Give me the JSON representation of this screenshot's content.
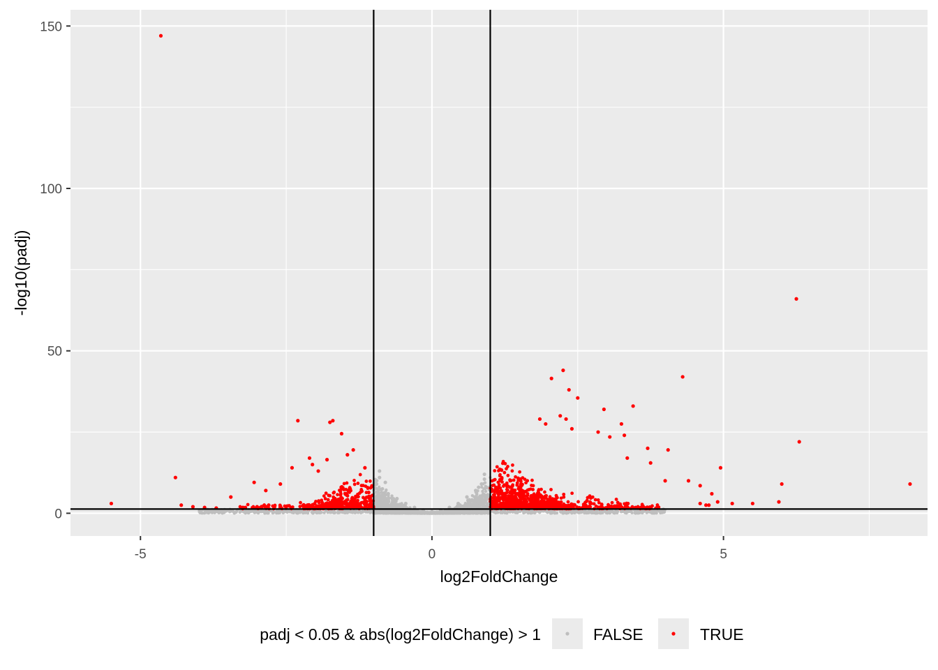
{
  "chart_data": {
    "type": "scatter",
    "title": "",
    "xlabel": "log2FoldChange",
    "ylabel": "-log10(padj)",
    "xlim": [
      -6.2,
      8.5
    ],
    "ylim": [
      -7,
      155
    ],
    "x_ticks": [
      -5,
      0,
      5
    ],
    "y_ticks": [
      0,
      50,
      100,
      150
    ],
    "x_tick_labels": [
      "-5",
      "0",
      "5"
    ],
    "y_tick_labels": [
      "0",
      "50",
      "100",
      "150"
    ],
    "grid": true,
    "reference_lines": {
      "vertical": [
        -1,
        1
      ],
      "horizontal": [
        1.3
      ]
    },
    "legend": {
      "title": "padj < 0.05 & abs(log2FoldChange) > 1",
      "position": "bottom",
      "entries": [
        {
          "label": "FALSE",
          "color": "#bebebe"
        },
        {
          "label": "TRUE",
          "color": "#ff0000"
        }
      ]
    },
    "colors": {
      "panel": "#ebebeb",
      "grid": "#ffffff",
      "false": "#bebebe",
      "true": "#ff0000",
      "ref_line": "#000000"
    },
    "series": [
      {
        "name": "TRUE",
        "color": "#ff0000",
        "points": [
          [
            -4.65,
            147
          ],
          [
            6.25,
            66
          ],
          [
            6.3,
            22
          ],
          [
            4.3,
            42
          ],
          [
            2.25,
            44
          ],
          [
            2.05,
            41.5
          ],
          [
            2.35,
            38
          ],
          [
            2.5,
            35.5
          ],
          [
            2.95,
            32
          ],
          [
            3.45,
            33
          ],
          [
            2.2,
            30
          ],
          [
            2.3,
            29
          ],
          [
            1.85,
            29
          ],
          [
            1.95,
            27.5
          ],
          [
            2.4,
            26
          ],
          [
            3.25,
            27.5
          ],
          [
            2.85,
            25
          ],
          [
            3.05,
            23.5
          ],
          [
            3.3,
            24
          ],
          [
            3.7,
            20
          ],
          [
            4.05,
            19.5
          ],
          [
            3.35,
            17
          ],
          [
            3.75,
            15.5
          ],
          [
            8.2,
            9
          ],
          [
            6.0,
            9
          ],
          [
            4.95,
            14
          ],
          [
            4.6,
            8.5
          ],
          [
            4.4,
            10
          ],
          [
            4.0,
            10
          ],
          [
            4.8,
            6
          ],
          [
            5.15,
            3
          ],
          [
            4.7,
            2.5
          ],
          [
            5.5,
            3
          ],
          [
            5.95,
            3.5
          ],
          [
            4.6,
            3
          ],
          [
            4.75,
            2.5
          ],
          [
            4.9,
            3.5
          ],
          [
            -2.3,
            28.5
          ],
          [
            -1.7,
            28.5
          ],
          [
            -1.75,
            28
          ],
          [
            -1.55,
            24.5
          ],
          [
            -1.35,
            19.5
          ],
          [
            -1.45,
            18
          ],
          [
            -1.15,
            14
          ],
          [
            -2.1,
            17
          ],
          [
            -2.05,
            15
          ],
          [
            -2.4,
            14
          ],
          [
            -1.8,
            16.5
          ],
          [
            -1.95,
            13
          ],
          [
            -4.4,
            11
          ],
          [
            -3.05,
            9.5
          ],
          [
            -2.85,
            7
          ],
          [
            -2.6,
            9
          ],
          [
            -3.45,
            5
          ],
          [
            -5.5,
            3
          ],
          [
            -4.3,
            2.5
          ],
          [
            -4.1,
            2
          ],
          [
            -3.9,
            1.8
          ],
          [
            -3.7,
            1.6
          ],
          [
            -3.2,
            1.8
          ],
          [
            -3.0,
            2.0
          ],
          [
            -2.8,
            2.5
          ],
          [
            -2.6,
            2.2
          ],
          [
            -2.45,
            2.3
          ],
          [
            -2.2,
            2.6
          ]
        ]
      },
      {
        "name": "FALSE",
        "color": "#bebebe",
        "points": [
          [
            -0.9,
            13
          ],
          [
            -0.9,
            11
          ],
          [
            -0.95,
            9
          ],
          [
            -0.85,
            7.5
          ],
          [
            -0.75,
            6
          ],
          [
            -0.6,
            4.5
          ],
          [
            -0.45,
            3
          ],
          [
            -0.3,
            1.8
          ],
          [
            -0.15,
            1
          ],
          [
            0,
            0.5
          ],
          [
            0.15,
            1
          ],
          [
            0.3,
            1.8
          ],
          [
            0.45,
            3
          ],
          [
            0.6,
            5
          ],
          [
            0.75,
            7
          ],
          [
            0.85,
            9
          ],
          [
            0.9,
            10.5
          ],
          [
            0.9,
            12
          ],
          [
            0.8,
            8
          ],
          [
            -0.8,
            9.5
          ]
        ]
      }
    ]
  }
}
